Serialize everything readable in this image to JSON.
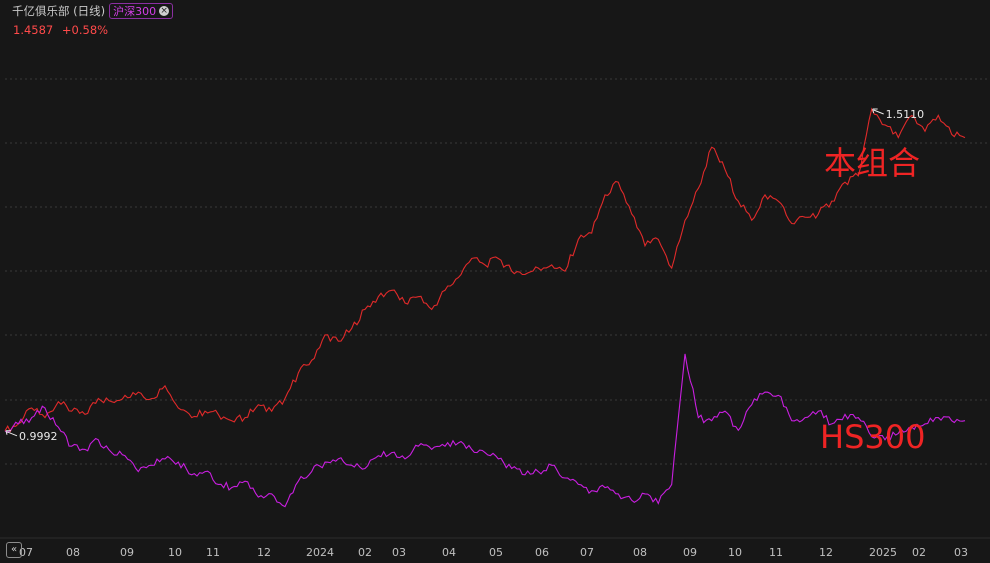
{
  "header": {
    "title": "千亿俱乐部 (日线)",
    "compare_chip": "沪深300",
    "close_icon": "close-circle-icon"
  },
  "stats": {
    "value": "1.4587",
    "change": "+0.58%"
  },
  "colors": {
    "background": "#171717",
    "portfolio": "#e02a2a",
    "index": "#c91fe0",
    "grid": "#3a3a3a",
    "axis_text": "#c0c0c0"
  },
  "chart_data": {
    "type": "line",
    "x_ticks": [
      "07",
      "08",
      "09",
      "10",
      "11",
      "12",
      "2024",
      "02",
      "03",
      "04",
      "05",
      "06",
      "07",
      "08",
      "09",
      "10",
      "11",
      "12",
      "2025",
      "02",
      "03"
    ],
    "ylim": [
      0.87,
      1.56
    ],
    "grid": true,
    "series": [
      {
        "name": "本组合",
        "color": "#e02a2a",
        "values": [
          0.9992,
          1.01,
          1.035,
          1.02,
          1.045,
          1.03,
          1.025,
          1.05,
          1.045,
          1.055,
          1.06,
          1.05,
          1.07,
          1.035,
          1.02,
          1.03,
          1.025,
          1.015,
          1.02,
          1.04,
          1.03,
          1.05,
          1.09,
          1.11,
          1.15,
          1.14,
          1.16,
          1.19,
          1.21,
          1.22,
          1.2,
          1.21,
          1.19,
          1.22,
          1.24,
          1.27,
          1.26,
          1.27,
          1.25,
          1.245,
          1.255,
          1.26,
          1.25,
          1.3,
          1.31,
          1.37,
          1.39,
          1.34,
          1.29,
          1.3,
          1.255,
          1.33,
          1.38,
          1.445,
          1.41,
          1.36,
          1.33,
          1.37,
          1.36,
          1.325,
          1.335,
          1.34,
          1.36,
          1.39,
          1.4,
          1.505,
          1.48,
          1.46,
          1.495,
          1.47,
          1.495,
          1.465,
          1.46
        ]
      },
      {
        "name": "HS300",
        "color": "#c91fe0",
        "values": [
          0.9992,
          1.01,
          1.02,
          1.035,
          1.005,
          0.975,
          0.97,
          0.985,
          0.965,
          0.96,
          0.935,
          0.945,
          0.955,
          0.95,
          0.93,
          0.935,
          0.915,
          0.91,
          0.92,
          0.895,
          0.9,
          0.88,
          0.92,
          0.935,
          0.95,
          0.955,
          0.945,
          0.94,
          0.96,
          0.965,
          0.955,
          0.975,
          0.97,
          0.975,
          0.98,
          0.97,
          0.965,
          0.955,
          0.94,
          0.93,
          0.935,
          0.945,
          0.925,
          0.915,
          0.905,
          0.91,
          0.9,
          0.89,
          0.9,
          0.885,
          0.915,
          1.12,
          1.02,
          1.015,
          1.03,
          1.0,
          1.04,
          1.06,
          1.055,
          1.015,
          1.02,
          1.03,
          1.01,
          1.025,
          1.02,
          0.99,
          0.985,
          0.995,
          1.005,
          1.01,
          1.02,
          1.015,
          1.015
        ]
      }
    ],
    "annotations": [
      {
        "text": "1.5110",
        "series": 0,
        "index": 65
      },
      {
        "text": "0.9992",
        "series": 1,
        "index": 0
      }
    ],
    "big_labels": [
      "本组合",
      "HS300"
    ]
  }
}
